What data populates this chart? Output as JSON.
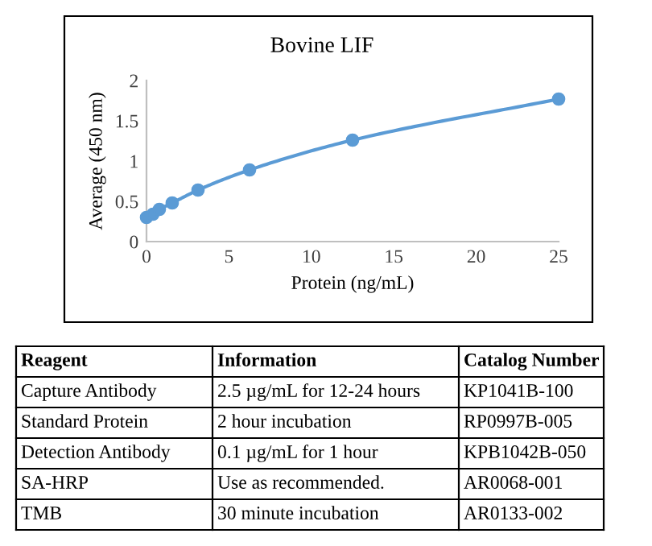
{
  "chart_data": {
    "type": "line",
    "title": "Bovine LIF",
    "xlabel": "Protein (ng/mL)",
    "ylabel": "Average (450 nm)",
    "series": [
      {
        "color": "#5b9bd5",
        "x": [
          0,
          0.39,
          0.78,
          1.56,
          3.125,
          6.25,
          12.5,
          25
        ],
        "values": [
          0.3,
          0.34,
          0.4,
          0.48,
          0.64,
          0.89,
          1.26,
          1.77
        ]
      }
    ],
    "xlim": [
      0,
      25
    ],
    "xticks": [
      0,
      5,
      10,
      15,
      20,
      25
    ],
    "ylim": [
      0,
      2
    ],
    "yticks": [
      0,
      0.5,
      1,
      1.5,
      2
    ],
    "marker": "circle",
    "grid": false,
    "annotations": [
      "Reagent",
      "Information",
      "Catalog Number",
      "Capture Antibody",
      "2.5 µg/mL for 12-24 hours",
      "KP1041B-100",
      "Standard Protein",
      "2 hour incubation",
      "RP0997B-005",
      "Detection Antibody",
      "0.1 µg/mL for 1 hour",
      "KPB1042B-050",
      "SA-HRP",
      "Use as recommended.",
      "AR0068-001",
      "TMB",
      "30 minute incubation",
      "AR0133-002"
    ]
  }
}
